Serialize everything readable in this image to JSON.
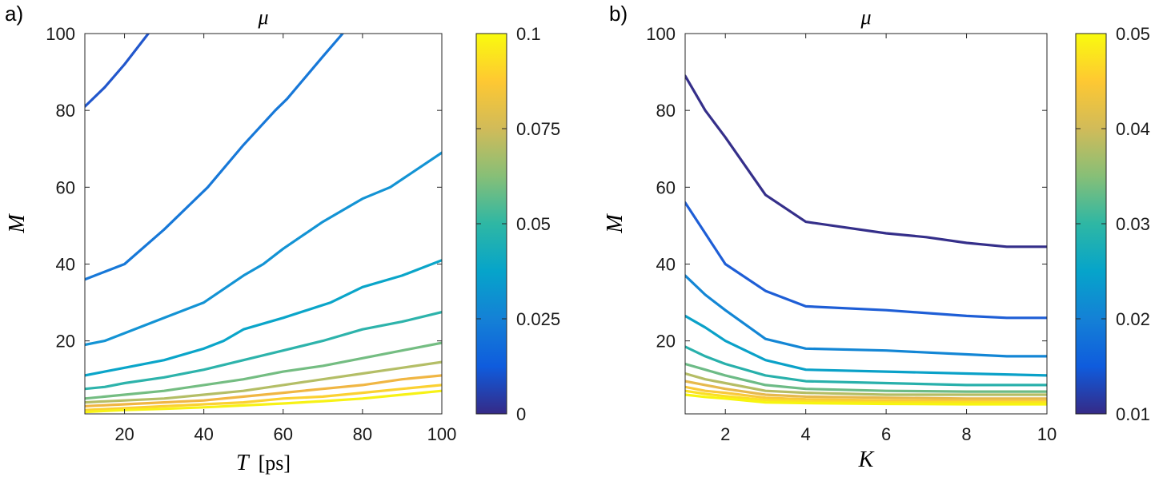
{
  "chart_data": [
    {
      "type": "line",
      "panel_label": "a)",
      "title": "μ",
      "xlabel": "T [ps]",
      "xlabel_math": "T",
      "xlabel_unit": "[ps]",
      "ylabel": "M",
      "xlim": [
        10,
        100
      ],
      "ylim": [
        1,
        100
      ],
      "xticks": [
        20,
        40,
        60,
        80,
        100
      ],
      "yticks": [
        20,
        40,
        60,
        80,
        100
      ],
      "grid": false,
      "colorbar": {
        "label": "μ",
        "range": [
          0,
          0.1
        ],
        "ticks": [
          0,
          0.025,
          0.05,
          0.075,
          0.1
        ],
        "tick_labels": [
          "0",
          "0.025",
          "0.05",
          "0.075",
          "0.1"
        ],
        "colormap": [
          "#352a87",
          "#0f5cdd",
          "#1481d6",
          "#06a4ca",
          "#2eb7a4",
          "#87bf77",
          "#d1bb59",
          "#fec832",
          "#f9fb0e"
        ]
      },
      "series": [
        {
          "level": 0.01,
          "color": "#2257cc",
          "x": [
            10,
            15,
            20,
            26
          ],
          "y": [
            81,
            86,
            92,
            100
          ]
        },
        {
          "level": 0.02,
          "color": "#1778d8",
          "x": [
            10,
            15,
            20,
            30,
            41,
            50,
            58,
            61,
            70,
            75
          ],
          "y": [
            36,
            38,
            40,
            49,
            60,
            71,
            80,
            83,
            94,
            100
          ]
        },
        {
          "level": 0.03,
          "color": "#1393d4",
          "x": [
            10,
            15,
            20,
            30,
            40,
            50,
            55,
            60,
            70,
            80,
            87,
            100
          ],
          "y": [
            19,
            20,
            22,
            26,
            30,
            37,
            40,
            44,
            51,
            57,
            60,
            69
          ]
        },
        {
          "level": 0.04,
          "color": "#0aa5c9",
          "x": [
            10,
            15,
            20,
            30,
            40,
            45,
            50,
            60,
            72,
            80,
            90,
            100
          ],
          "y": [
            11,
            12,
            13,
            15,
            18,
            20,
            23,
            26,
            30,
            34,
            37,
            41
          ]
        },
        {
          "level": 0.05,
          "color": "#2db3ab",
          "x": [
            10,
            15,
            20,
            30,
            40,
            50,
            60,
            70,
            80,
            90,
            100
          ],
          "y": [
            7.5,
            8,
            9,
            10.5,
            12.5,
            15,
            17.5,
            20,
            23,
            25,
            27.5
          ]
        },
        {
          "level": 0.06,
          "color": "#74bd82",
          "x": [
            10,
            20,
            30,
            40,
            50,
            60,
            70,
            80,
            90,
            100
          ],
          "y": [
            5,
            6,
            7,
            8.5,
            10,
            12,
            13.5,
            15.5,
            17.5,
            19.5
          ]
        },
        {
          "level": 0.07,
          "color": "#b4be66",
          "x": [
            10,
            20,
            30,
            40,
            50,
            60,
            70,
            80,
            90,
            100
          ],
          "y": [
            4,
            4.5,
            5,
            6,
            7,
            8.5,
            10,
            11.5,
            13,
            14.5
          ]
        },
        {
          "level": 0.08,
          "color": "#f0b643",
          "x": [
            10,
            20,
            30,
            40,
            50,
            60,
            70,
            80,
            90,
            100
          ],
          "y": [
            3,
            3.5,
            4,
            4.5,
            5.5,
            6.5,
            7.5,
            8.5,
            10,
            11
          ]
        },
        {
          "level": 0.09,
          "color": "#fbd132",
          "x": [
            10,
            20,
            30,
            40,
            50,
            60,
            70,
            80,
            90,
            100
          ],
          "y": [
            2,
            2.5,
            3,
            3.5,
            4,
            5,
            5.5,
            6.5,
            7.5,
            8.5
          ]
        },
        {
          "level": 0.1,
          "color": "#f7f216",
          "x": [
            10,
            20,
            30,
            40,
            50,
            60,
            70,
            80,
            90,
            100
          ],
          "y": [
            1.5,
            2,
            2.3,
            2.7,
            3.2,
            3.7,
            4.3,
            5,
            6,
            7
          ]
        }
      ]
    },
    {
      "type": "line",
      "panel_label": "b)",
      "title": "μ",
      "xlabel": "K",
      "ylabel": "M",
      "xlim": [
        1,
        10
      ],
      "ylim": [
        1,
        100
      ],
      "xticks": [
        2,
        4,
        6,
        8,
        10
      ],
      "yticks": [
        20,
        40,
        60,
        80,
        100
      ],
      "grid": false,
      "colorbar": {
        "label": "μ",
        "range": [
          0.01,
          0.05
        ],
        "ticks": [
          0.01,
          0.02,
          0.03,
          0.04,
          0.05
        ],
        "tick_labels": [
          "0.01",
          "0.02",
          "0.03",
          "0.04",
          "0.05"
        ],
        "colormap": [
          "#352a87",
          "#0f5cdd",
          "#1481d6",
          "#06a4ca",
          "#2eb7a4",
          "#87bf77",
          "#d1bb59",
          "#fec832",
          "#f9fb0e"
        ]
      },
      "series": [
        {
          "level": 0.01,
          "color": "#352f8a",
          "x": [
            1,
            1.5,
            2,
            3,
            4,
            6,
            7,
            8,
            9,
            10
          ],
          "y": [
            89,
            80,
            73,
            58,
            51,
            48,
            47,
            45.5,
            44.5,
            44.5
          ]
        },
        {
          "level": 0.015,
          "color": "#1e5ed6",
          "x": [
            1,
            1.5,
            2,
            3,
            4,
            6,
            8,
            9,
            10
          ],
          "y": [
            56,
            48,
            40,
            33,
            29,
            28,
            26.5,
            26,
            26
          ]
        },
        {
          "level": 0.02,
          "color": "#1386d5",
          "x": [
            1,
            1.5,
            2,
            3,
            4,
            6,
            8,
            9,
            10
          ],
          "y": [
            37,
            32,
            28,
            20.5,
            18,
            17.5,
            16.5,
            16,
            16
          ]
        },
        {
          "level": 0.025,
          "color": "#0aa1c8",
          "x": [
            1,
            1.5,
            2,
            3,
            4,
            6,
            8,
            10
          ],
          "y": [
            26.5,
            23.5,
            20,
            15,
            12.5,
            12,
            11.5,
            11
          ]
        },
        {
          "level": 0.03,
          "color": "#28b0ab",
          "x": [
            1,
            1.5,
            2,
            3,
            4,
            6,
            8,
            10
          ],
          "y": [
            18.5,
            16,
            14,
            11,
            9.5,
            9,
            8.5,
            8.5
          ]
        },
        {
          "level": 0.035,
          "color": "#6dbb86",
          "x": [
            1,
            1.5,
            2,
            3,
            4,
            6,
            8,
            10
          ],
          "y": [
            14,
            12.5,
            11,
            8.5,
            7.5,
            7,
            6.8,
            6.8
          ]
        },
        {
          "level": 0.04,
          "color": "#b5bd65",
          "x": [
            1,
            1.5,
            2,
            3,
            4,
            6,
            8,
            10
          ],
          "y": [
            11.5,
            10,
            9,
            7,
            6.5,
            6,
            6,
            6
          ]
        },
        {
          "level": 0.0425,
          "color": "#e6b94d",
          "x": [
            1,
            1.5,
            2,
            3,
            4,
            6,
            8,
            10
          ],
          "y": [
            9.5,
            8.5,
            7.5,
            6,
            5.5,
            5.2,
            5,
            5
          ]
        },
        {
          "level": 0.045,
          "color": "#f9c93b",
          "x": [
            1,
            1.5,
            2,
            3,
            4,
            6,
            8,
            10
          ],
          "y": [
            8,
            7,
            6.5,
            5.2,
            4.8,
            4.5,
            4.4,
            4.4
          ]
        },
        {
          "level": 0.0475,
          "color": "#fbe024",
          "x": [
            1,
            1.5,
            2,
            3,
            4,
            6,
            8,
            10
          ],
          "y": [
            7,
            6.2,
            5.6,
            4.6,
            4.2,
            4,
            4,
            4
          ]
        },
        {
          "level": 0.05,
          "color": "#f7f50f",
          "x": [
            1,
            1.5,
            2,
            3,
            4,
            6,
            8,
            10
          ],
          "y": [
            6,
            5.4,
            5,
            4,
            3.8,
            3.6,
            3.5,
            3.5
          ]
        }
      ]
    }
  ]
}
